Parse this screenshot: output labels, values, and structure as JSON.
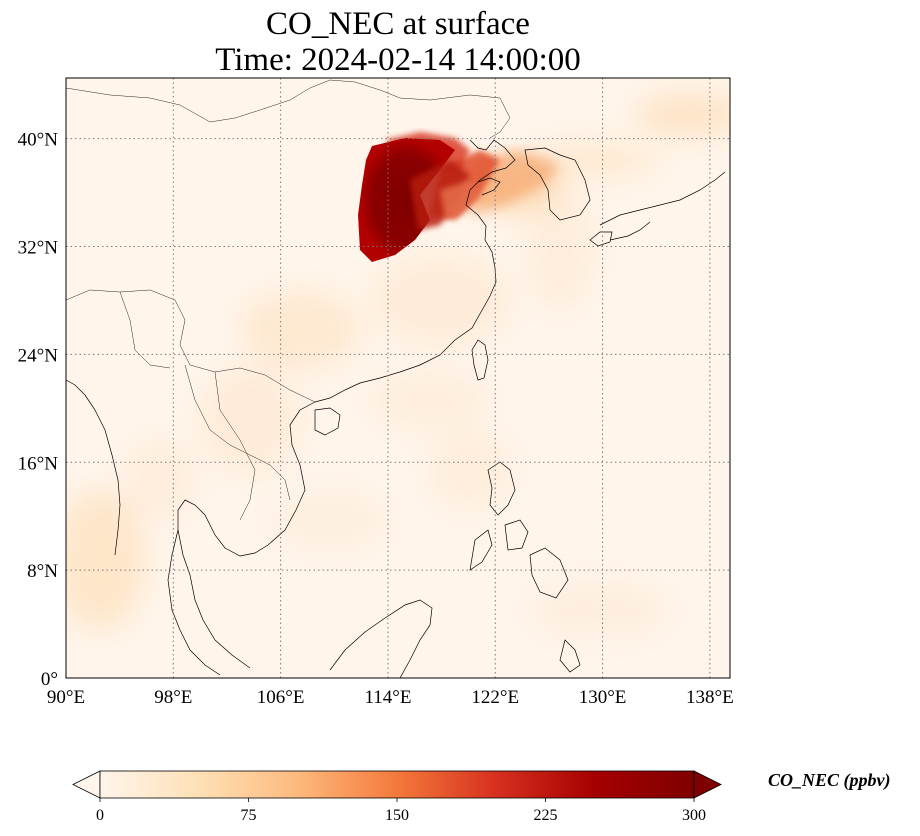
{
  "title": {
    "line1": "CO_NEC at surface",
    "line2": "Time: 2024-02-14 14:00:00"
  },
  "map": {
    "projection": "PlateCarree",
    "lon_range": [
      90,
      139.5
    ],
    "lat_range": [
      0,
      44.5
    ],
    "background_color": "#fff5eb",
    "gridlines": "dotted",
    "lon_ticks": [
      {
        "value": 90,
        "label": "90°E"
      },
      {
        "value": 98,
        "label": "98°E"
      },
      {
        "value": 106,
        "label": "106°E"
      },
      {
        "value": 114,
        "label": "114°E"
      },
      {
        "value": 122,
        "label": "122°E"
      },
      {
        "value": 130,
        "label": "130°E"
      },
      {
        "value": 138,
        "label": "138°E"
      }
    ],
    "lat_ticks": [
      {
        "value": 0,
        "label": "0°"
      },
      {
        "value": 8,
        "label": "8°N"
      },
      {
        "value": 16,
        "label": "16°N"
      },
      {
        "value": 24,
        "label": "24°N"
      },
      {
        "value": 32,
        "label": "32°N"
      },
      {
        "value": 40,
        "label": "40°N"
      }
    ]
  },
  "colorbar": {
    "label": "CO_NEC (ppbv)",
    "cmap": "OrRd",
    "extend": "both",
    "min": 0,
    "max": 300,
    "stops": [
      "#fff5eb",
      "#fee0b6",
      "#fdb97d",
      "#f4793b",
      "#d7301f",
      "#a50000",
      "#7f0000"
    ],
    "ticks": [
      {
        "value": 0,
        "label": "0"
      },
      {
        "value": 75,
        "label": "75"
      },
      {
        "value": 150,
        "label": "150"
      },
      {
        "value": 225,
        "label": "225"
      },
      {
        "value": 300,
        "label": "300"
      }
    ]
  }
}
